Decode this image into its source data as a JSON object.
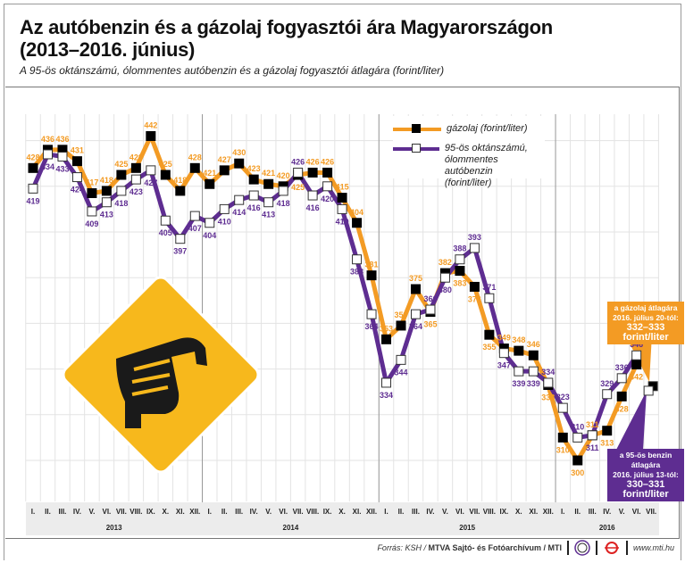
{
  "title_line1": "Az autóbenzin és a gázolaj fogyasztói ára Magyarországon",
  "title_line2": "(2013–2016. június)",
  "subtitle": "A 95-ös oktánszámú, ólommentes autóbenzin és a gázolaj fogyasztói átlagára (forint/liter)",
  "legend": {
    "diesel": "gázolaj (forint/liter)",
    "petrol_1": "95-ös oktánszámú,",
    "petrol_2": "ólommentes autóbenzin",
    "petrol_3": "(forint/liter)"
  },
  "callouts": {
    "diesel_1": "a gázolaj átlagára",
    "diesel_2": "2016. július 20-tól:",
    "diesel_3": "332–333 forint/liter",
    "petrol_1": "a 95-ös benzin átlagára",
    "petrol_2": "2016. július 13-tól:",
    "petrol_3": "330–331 forint/liter"
  },
  "footer": {
    "source_prefix": "Forrás: KSH /",
    "source_bold": "MTVA Sajtó- és Fotóarchívum / MTI",
    "website": "www.mti.hu",
    "logo1": "MTVA",
    "logo2": "MTI"
  },
  "colors": {
    "diesel": "#f39b24",
    "petrol": "#5e2d91",
    "pump_bg": "#f7b81c",
    "grid": "#e3e3e3",
    "axis_band": "#ececec"
  },
  "icons": [
    "fuel-nozzle-icon"
  ],
  "chart_data": {
    "type": "line",
    "title": "Az autóbenzin és a gázolaj fogyasztói ára Magyarországon (2013–2016. június)",
    "ylabel": "",
    "ylim": [
      280,
      460
    ],
    "grid": true,
    "legend_position": "top-right",
    "month_labels": [
      "I.",
      "II.",
      "III.",
      "IV.",
      "V.",
      "VI.",
      "VII.",
      "VIII.",
      "IX.",
      "X.",
      "XI.",
      "XII."
    ],
    "years": [
      "2013",
      "2014",
      "2015",
      "2016"
    ],
    "months_in_2016": 7,
    "series": [
      {
        "name": "gázolaj (forint/liter)",
        "key": "diesel",
        "marker": "filled-square",
        "values": [
          428,
          436,
          436,
          431,
          417,
          418,
          425,
          428,
          442,
          425,
          418,
          428,
          421,
          427,
          430,
          423,
          421,
          420,
          425,
          426,
          426,
          415,
          404,
          381,
          353,
          359,
          375,
          365,
          382,
          383,
          376,
          355,
          349,
          348,
          346,
          333,
          310,
          300,
          311,
          313,
          328,
          342
        ],
        "estimate_july_2016": [
          332,
          333
        ]
      },
      {
        "name": "95-ös oktánszámú, ólommentes autóbenzin (forint/liter)",
        "key": "petrol",
        "marker": "open-square",
        "values": [
          419,
          434,
          433,
          424,
          409,
          413,
          418,
          423,
          427,
          405,
          397,
          407,
          404,
          410,
          414,
          416,
          413,
          418,
          426,
          416,
          420,
          410,
          388,
          364,
          334,
          344,
          364,
          366,
          380,
          388,
          393,
          371,
          347,
          339,
          339,
          334,
          323,
          310,
          311,
          329,
          336,
          346
        ],
        "estimate_july_2016": [
          330,
          331
        ]
      }
    ]
  }
}
